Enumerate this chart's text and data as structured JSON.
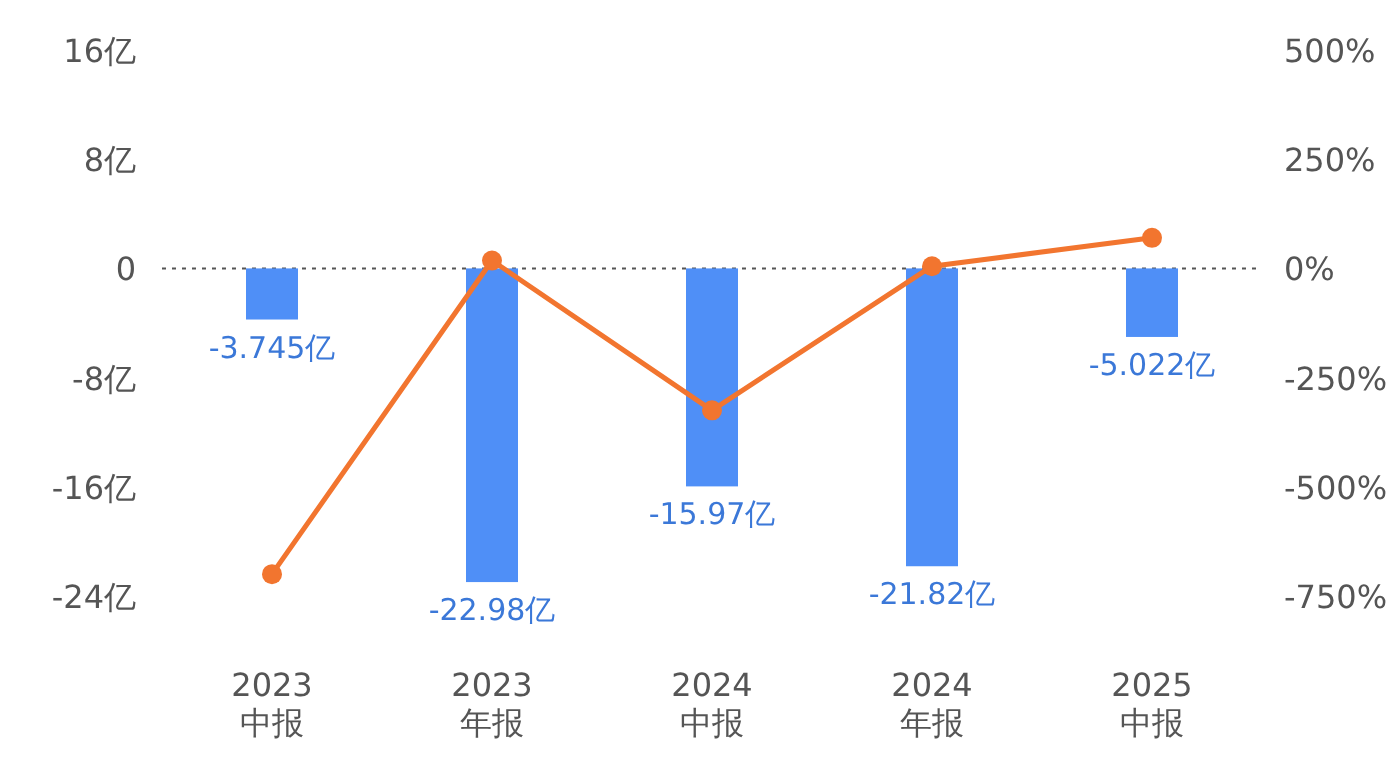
{
  "chart_data": {
    "type": "bar",
    "categories": [
      "2023\n中报",
      "2023\n年报",
      "2024\n中报",
      "2024\n年报",
      "2025\n中报"
    ],
    "series": [
      {
        "color": "#4f8ff7",
        "values": [
          -3.745,
          -22.98,
          -15.97,
          -21.82,
          -5.022
        ],
        "value_labels": [
          "-3.745亿",
          "-22.98亿",
          "-15.97亿",
          "-21.82亿",
          "-5.022亿"
        ]
      },
      {
        "type": "line",
        "axis": "y2",
        "color": "#f2752f",
        "marker": "circle",
        "values": [
          -700,
          18,
          -325,
          5,
          70
        ]
      }
    ],
    "ylim": [
      -24,
      16
    ],
    "yticks": [
      {
        "value": -24,
        "label": "-24亿"
      },
      {
        "value": -16,
        "label": "-16亿"
      },
      {
        "value": -8,
        "label": "-8亿"
      },
      0,
      {
        "value": 8,
        "label": "8亿"
      },
      {
        "value": 16,
        "label": "16亿"
      }
    ],
    "y2lim": [
      -750,
      500
    ],
    "y2ticks": [
      {
        "value": -750,
        "label": "-750%"
      },
      {
        "value": -500,
        "label": "-500%"
      },
      {
        "value": -250,
        "label": "-250%"
      },
      {
        "value": 0,
        "label": "0%"
      },
      {
        "value": 250,
        "label": "250%"
      },
      {
        "value": 500,
        "label": "500%"
      }
    ],
    "ref_lines": [
      {
        "axis": "y",
        "value": 0,
        "color": "#555555",
        "line_style": "dotted"
      }
    ],
    "grid": false
  }
}
